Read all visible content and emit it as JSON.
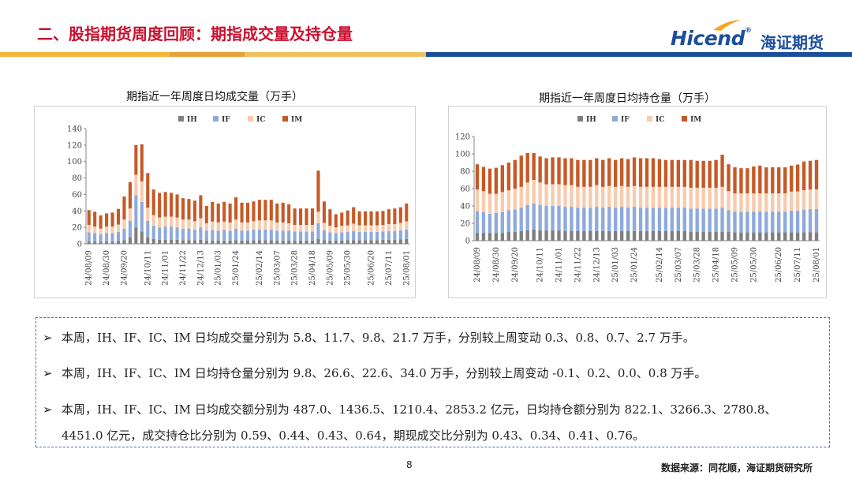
{
  "header": {
    "title": "二、股指期货周度回顾：期指成交量及持仓量",
    "logo_en": "Hicend",
    "logo_reg": "®",
    "logo_cn": "海证期货"
  },
  "colors": {
    "IH": "#7f7f7f",
    "IF": "#8eaadb",
    "IC": "#f8cbad",
    "IM": "#c55a27",
    "title": "#c8102e",
    "brand": "#1c4e9c",
    "accent": "#f5a623"
  },
  "notes": {
    "line1": "本周，IH、IF、IC、IM 日均成交量分别为 5.8、11.7、9.8、21.7 万手，分别较上周变动 0.3、0.8、0.7、2.7 万手。",
    "line2": "本周，IH、IF、IC、IM 日均持仓量分别为 9.8、26.6、22.6、34.0 万手，分别较上周变动 -0.1、0.2、0.0、0.8 万手。",
    "line3a": "本周，IH、IF、IC、IM 日均成交额分别为 487.0、1436.5、1210.4、2853.2 亿元，日均持仓额分别为 822.1、3266.3、2780.8、",
    "line3b": "4451.0 亿元，成交持仓比分别为 0.59、0.44、0.43、0.64，期现成交比分别为 0.43、0.34、0.41、0.76。"
  },
  "footer": {
    "page": "8",
    "source": "数据来源：同花顺，海证期货研究所"
  },
  "chart_data": [
    {
      "type": "bar",
      "stacked": true,
      "title": "期指近一年周度日均成交量（万手）",
      "ylim": [
        0,
        140
      ],
      "yticks": [
        0,
        20,
        40,
        60,
        80,
        100,
        120,
        140
      ],
      "legend": "top",
      "x_labels": [
        "24/08/09",
        "24/08/30",
        "24/09/20",
        "24/10/11",
        "24/11/01",
        "24/11/22",
        "24/12/13",
        "25/01/03",
        "25/01/24",
        "25/02/14",
        "25/03/07",
        "25/03/28",
        "25/04/18",
        "25/05/09",
        "25/05/30",
        "25/06/20",
        "25/07/11",
        "25/08/01"
      ],
      "series": [
        {
          "name": "IH",
          "values": [
            3,
            3,
            2.5,
            3,
            3,
            3.5,
            4.5,
            8,
            20,
            15,
            8,
            6,
            5,
            5,
            5,
            5,
            4.5,
            4.5,
            4.5,
            5,
            4,
            4,
            4,
            4,
            4,
            4.5,
            4,
            4,
            4.5,
            4.5,
            4.5,
            4.5,
            4,
            4,
            4,
            4,
            4,
            4,
            4,
            6,
            4.5,
            4,
            4,
            4,
            4.5,
            4.5,
            4.5,
            4.5,
            4.5,
            4.5,
            5,
            5,
            5,
            5.5,
            5.8
          ]
        },
        {
          "name": "IF",
          "values": [
            11,
            10,
            9,
            10,
            10,
            11,
            14,
            20,
            39,
            36,
            20,
            16,
            15,
            16,
            16,
            15,
            14,
            14,
            13,
            15,
            12,
            13,
            12,
            13,
            12,
            14,
            12,
            12,
            13,
            13,
            13,
            13,
            12,
            12,
            12,
            11,
            11,
            11,
            11,
            19,
            12,
            10,
            9,
            10,
            10,
            11,
            10,
            10,
            10,
            10,
            10,
            10.5,
            10.5,
            11,
            11.7
          ]
        },
        {
          "name": "IC",
          "values": [
            9,
            8,
            7,
            8,
            8,
            9,
            11,
            15,
            25,
            25,
            16,
            13,
            12,
            12,
            12,
            12,
            11,
            11,
            10,
            11,
            9,
            10,
            10,
            10,
            10,
            11,
            10,
            10,
            10,
            11,
            11,
            11,
            10,
            10,
            9,
            8,
            8,
            8,
            8,
            14,
            9,
            8,
            7,
            8,
            8,
            9,
            8,
            8,
            8,
            8,
            8,
            8.5,
            8.5,
            9,
            9.8
          ]
        },
        {
          "name": "IM",
          "values": [
            18,
            18,
            16,
            16,
            17,
            19,
            28,
            32,
            36,
            45,
            42,
            31,
            30,
            30,
            29,
            28,
            26,
            25,
            25,
            28,
            21,
            24,
            23,
            24,
            23,
            27,
            24,
            24,
            24,
            25,
            25,
            25,
            23,
            24,
            23,
            20,
            20,
            20,
            20,
            50,
            26,
            20,
            16,
            16,
            18,
            20,
            17,
            17,
            17,
            17,
            17,
            18,
            19,
            19,
            21.7
          ]
        }
      ]
    },
    {
      "type": "bar",
      "stacked": true,
      "title": "期指近一年周度日均持仓量（万手）",
      "ylim": [
        0,
        120
      ],
      "yticks": [
        0,
        20,
        40,
        60,
        80,
        100,
        120
      ],
      "legend": "top",
      "x_labels": [
        "24/08/09",
        "24/08/30",
        "24/09/20",
        "24/10/11",
        "24/11/01",
        "24/11/22",
        "24/12/13",
        "25/01/03",
        "25/01/24",
        "25/02/14",
        "25/03/07",
        "25/03/28",
        "25/04/18",
        "25/05/09",
        "25/05/30",
        "25/06/20",
        "25/07/11",
        "25/08/01"
      ],
      "series": [
        {
          "name": "IH",
          "values": [
            9,
            9,
            9,
            9,
            9,
            10,
            10,
            11,
            12,
            13,
            12,
            12,
            12,
            12,
            11,
            11,
            11,
            11,
            11,
            11,
            11,
            11,
            11,
            11,
            11,
            11,
            11,
            11,
            11,
            11,
            11,
            11,
            11,
            11,
            10,
            10,
            10,
            10,
            10,
            10,
            10,
            9.5,
            9.5,
            9.5,
            9.5,
            9.5,
            9.5,
            9.5,
            9.5,
            9.5,
            9.5,
            9.7,
            9.8,
            9.9,
            9.8
          ]
        },
        {
          "name": "IF",
          "values": [
            25,
            24,
            22,
            23,
            24,
            25,
            26,
            27,
            29,
            30,
            29,
            28,
            28,
            28,
            28,
            28,
            27,
            27,
            27,
            28,
            27,
            28,
            27,
            28,
            27,
            28,
            27,
            27,
            27,
            27,
            27,
            27,
            27,
            27,
            27,
            27,
            27,
            27,
            27,
            28,
            25,
            24,
            24,
            24,
            24,
            24,
            24,
            24,
            24,
            24,
            25,
            25,
            26,
            26.4,
            26.6
          ]
        },
        {
          "name": "IC",
          "values": [
            25,
            24,
            23,
            22,
            23,
            23,
            24,
            24,
            26,
            27,
            26,
            25,
            25,
            25,
            25,
            25,
            24,
            24,
            24,
            25,
            24,
            24,
            24,
            24,
            24,
            24,
            24,
            24,
            24,
            24,
            24,
            24,
            24,
            24,
            24,
            24,
            24,
            24,
            24,
            24,
            22,
            21,
            21,
            21,
            21,
            21,
            21,
            21,
            21,
            21,
            22,
            22,
            22.4,
            22.6,
            22.6
          ]
        },
        {
          "name": "IM",
          "values": [
            29,
            28,
            29,
            30,
            31,
            32,
            33,
            36,
            34,
            31,
            30,
            30,
            31,
            31,
            31,
            31,
            31,
            31,
            31,
            31,
            31,
            32,
            31,
            32,
            32,
            33,
            33,
            33,
            33,
            32,
            31,
            31,
            31,
            31,
            32,
            31,
            31,
            31,
            32,
            37,
            31,
            30,
            29,
            29,
            31,
            32,
            30,
            30,
            30,
            30,
            30,
            31,
            33,
            33.2,
            34.0
          ]
        }
      ]
    }
  ]
}
